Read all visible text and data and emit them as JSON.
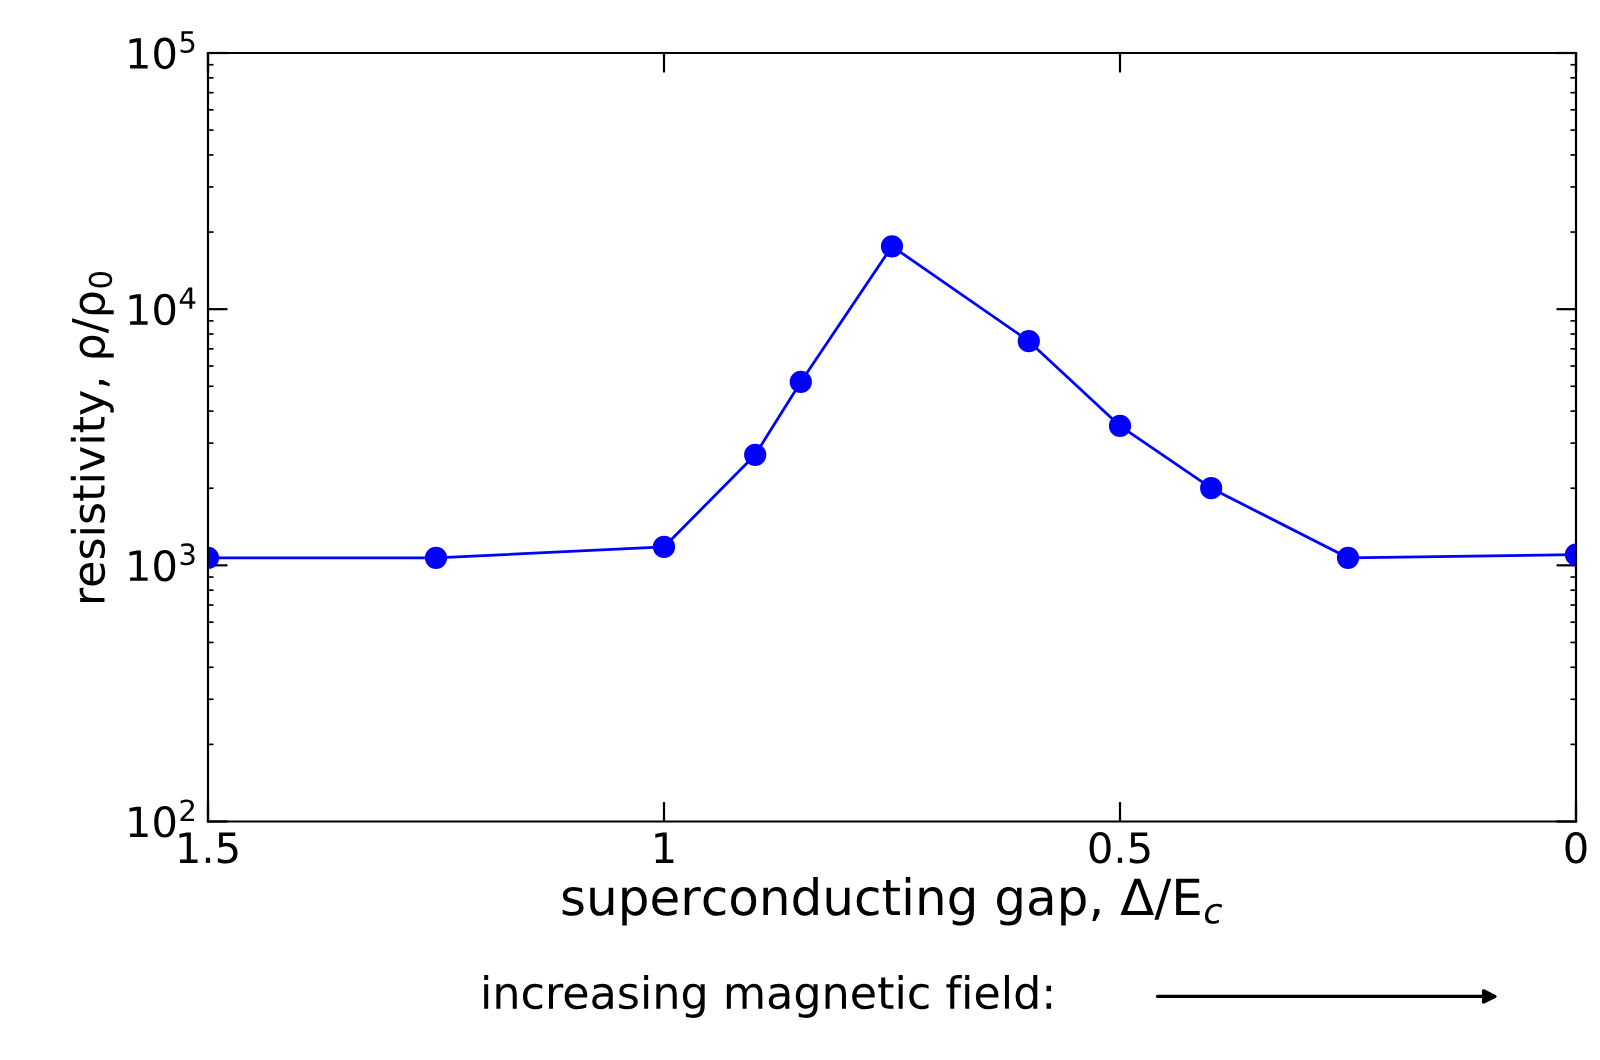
{
  "chart_data": {
    "type": "line",
    "xlabel": "superconducting gap, Δ/E$_{c}$",
    "ylabel": "resistivity, ρ/ρ$_{0}$",
    "annotations": [
      "increasing magnetic field:"
    ],
    "x": [
      1.5,
      1.25,
      1.0,
      0.9,
      0.85,
      0.75,
      0.6,
      0.5,
      0.4,
      0.25,
      0
    ],
    "series": [
      {
        "color": "#0000ff",
        "values": [
          1070,
          1070,
          1180,
          2700,
          5200,
          17600,
          7500,
          3500,
          2000,
          1070,
          1100
        ]
      }
    ],
    "log": "y",
    "xlim": [
      1.5,
      0
    ],
    "ylim": [
      100,
      100000
    ],
    "xticks": [
      1.5,
      1,
      0.5,
      0
    ],
    "yticks": [
      {
        "value": 100,
        "label": "10$^{2}$"
      },
      {
        "value": 1000,
        "label": "10$^{3}$"
      },
      {
        "value": 10000,
        "label": "10$^{4}$"
      },
      {
        "value": 100000,
        "label": "10$^{5}$"
      }
    ],
    "grid": false,
    "marker": "circle",
    "line_style": "solid"
  }
}
